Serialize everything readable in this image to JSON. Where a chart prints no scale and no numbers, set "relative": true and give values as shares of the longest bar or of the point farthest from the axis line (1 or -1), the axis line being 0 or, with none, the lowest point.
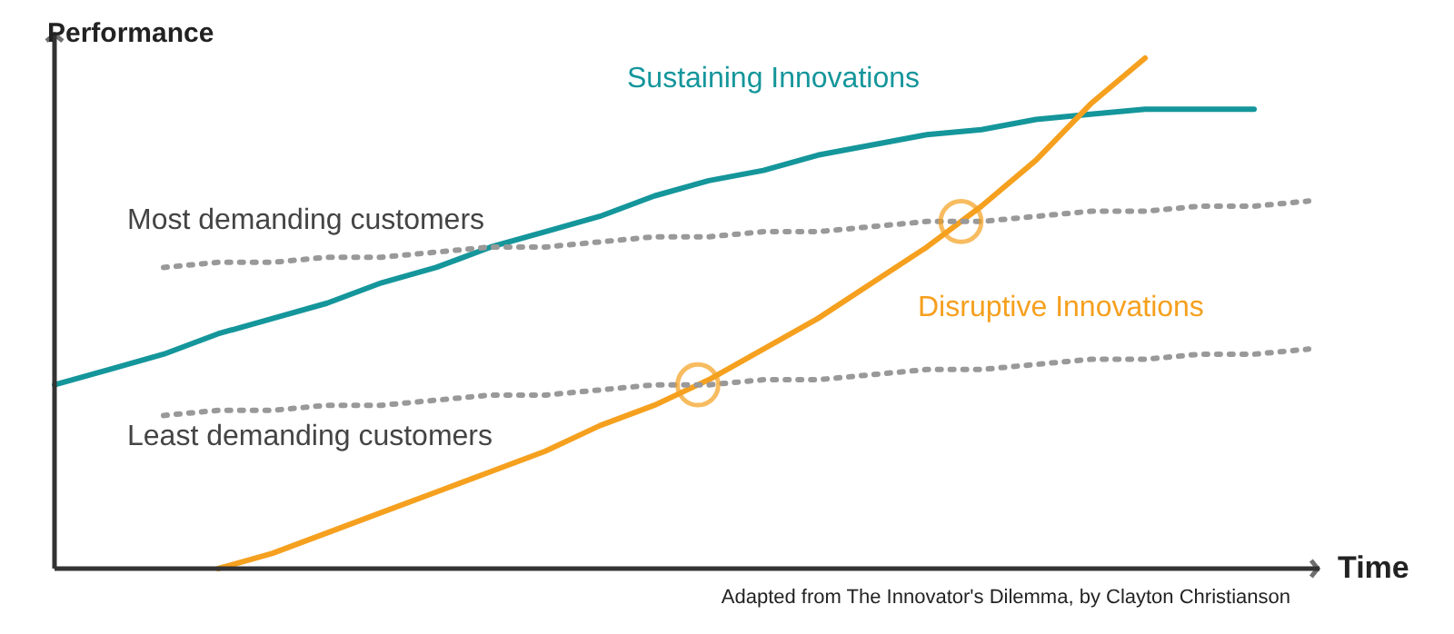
{
  "chart_data": {
    "type": "line",
    "relative": true,
    "xlabel": "Time",
    "ylabel": "Performance",
    "categories": [
      null,
      null,
      null,
      null,
      null,
      null,
      null,
      null,
      null,
      null,
      null,
      null,
      null,
      null,
      null,
      null,
      null,
      null,
      null,
      null,
      null,
      null,
      null,
      null
    ],
    "series": [
      {
        "name": "Sustaining Innovations",
        "color": "#14969b",
        "line_style": "solid",
        "values": [
          0.36,
          0.39,
          0.42,
          0.46,
          0.49,
          0.52,
          0.56,
          0.59,
          0.63,
          0.66,
          0.69,
          0.73,
          0.76,
          0.78,
          0.81,
          0.83,
          0.85,
          0.86,
          0.88,
          0.89,
          0.9,
          0.9,
          0.9,
          null
        ]
      },
      {
        "name": "Disruptive Innovations",
        "color": "#f5a01e",
        "line_style": "solid",
        "values": [
          null,
          null,
          null,
          0.0,
          0.03,
          0.07,
          0.11,
          0.15,
          0.19,
          0.23,
          0.28,
          0.32,
          0.37,
          0.43,
          0.49,
          0.56,
          0.63,
          0.71,
          0.8,
          0.91,
          1.0,
          null,
          null,
          null
        ]
      },
      {
        "name": "Most demanding customers",
        "color": "#999999",
        "line_style": "dotted",
        "values": [
          null,
          null,
          0.59,
          0.6,
          0.6,
          0.61,
          0.61,
          0.62,
          0.63,
          0.63,
          0.64,
          0.65,
          0.65,
          0.66,
          0.66,
          0.67,
          0.68,
          0.68,
          0.69,
          0.7,
          0.7,
          0.71,
          0.71,
          0.72
        ]
      },
      {
        "name": "Least demanding customers",
        "color": "#999999",
        "line_style": "dotted",
        "values": [
          null,
          null,
          0.3,
          0.31,
          0.31,
          0.32,
          0.32,
          0.33,
          0.34,
          0.34,
          0.35,
          0.36,
          0.36,
          0.37,
          0.37,
          0.38,
          0.39,
          0.39,
          0.4,
          0.41,
          0.41,
          0.42,
          0.42,
          0.43
        ]
      }
    ],
    "annotations": [
      "Adapted from The Innovator's Dilemma, by Clayton Christianson"
    ]
  }
}
